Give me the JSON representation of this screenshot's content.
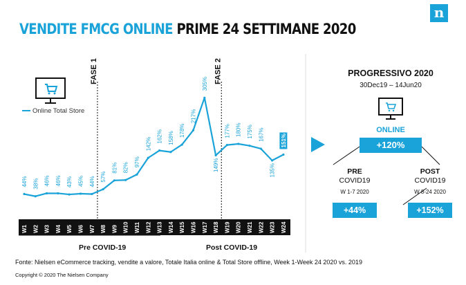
{
  "header": {
    "title_highlight": "VENDITE FMCG ONLINE",
    "title_rest": "PRIME 24 SETTIMANE 2020",
    "logo_letter": "n"
  },
  "chart_data": {
    "type": "line",
    "x": [
      "W1",
      "W2",
      "W3",
      "W4",
      "W5",
      "W6",
      "W7",
      "W8",
      "W9",
      "W10",
      "W11",
      "W12",
      "W13",
      "W14",
      "W15",
      "W16",
      "W17",
      "W18",
      "W19",
      "W20",
      "W21",
      "W22",
      "W23",
      "W24"
    ],
    "series": [
      {
        "name": "Online Total Store",
        "values": [
          44,
          38,
          46,
          46,
          43,
          45,
          44,
          57,
          81,
          82,
          97,
          142,
          162,
          158,
          178,
          217,
          305,
          149,
          177,
          180,
          175,
          167,
          135,
          151
        ],
        "labels": [
          "44%",
          "38%",
          "46%",
          "46%",
          "43%",
          "45%",
          "44%",
          "57%",
          "81%",
          "82%",
          "97%",
          "142%",
          "162%",
          "158%",
          "178%",
          "217%",
          "305%",
          "149%",
          "177%",
          "180%",
          "175%",
          "167%",
          "135%",
          "151%"
        ]
      }
    ],
    "highlighted_label_index": 23,
    "phase_lines": [
      {
        "label": "FASE 1",
        "after_index": 6
      },
      {
        "label": "FASE 2",
        "after_index": 17
      }
    ],
    "periods": [
      "Pre COVID-19",
      "Post COVID-19"
    ],
    "ylim": [
      0,
      330
    ],
    "legend_position": "top-left",
    "grid": false,
    "color": "#1aa3d9"
  },
  "legend": {
    "label": "Online Total Store"
  },
  "right_panel": {
    "title": "PROGRESSIVO 2020",
    "range": "30Dec19 – 14Jun20",
    "online_label": "ONLINE",
    "online_value": "+120%",
    "pre": {
      "line1": "PRE",
      "line2": "COVID19",
      "weeks": "W 1-7 2020",
      "value": "+44%"
    },
    "post": {
      "line1": "POST",
      "line2": "COVID19",
      "weeks": "W 8-24 2020",
      "value": "+152%"
    }
  },
  "footnote": "Fonte: Nielsen eCommerce tracking, vendite a valore, Totale Italia online & Total Store offline, Week 1-Week 24 2020 vs. 2019",
  "copyright": "Copyright © 2020 The Nielsen Company"
}
